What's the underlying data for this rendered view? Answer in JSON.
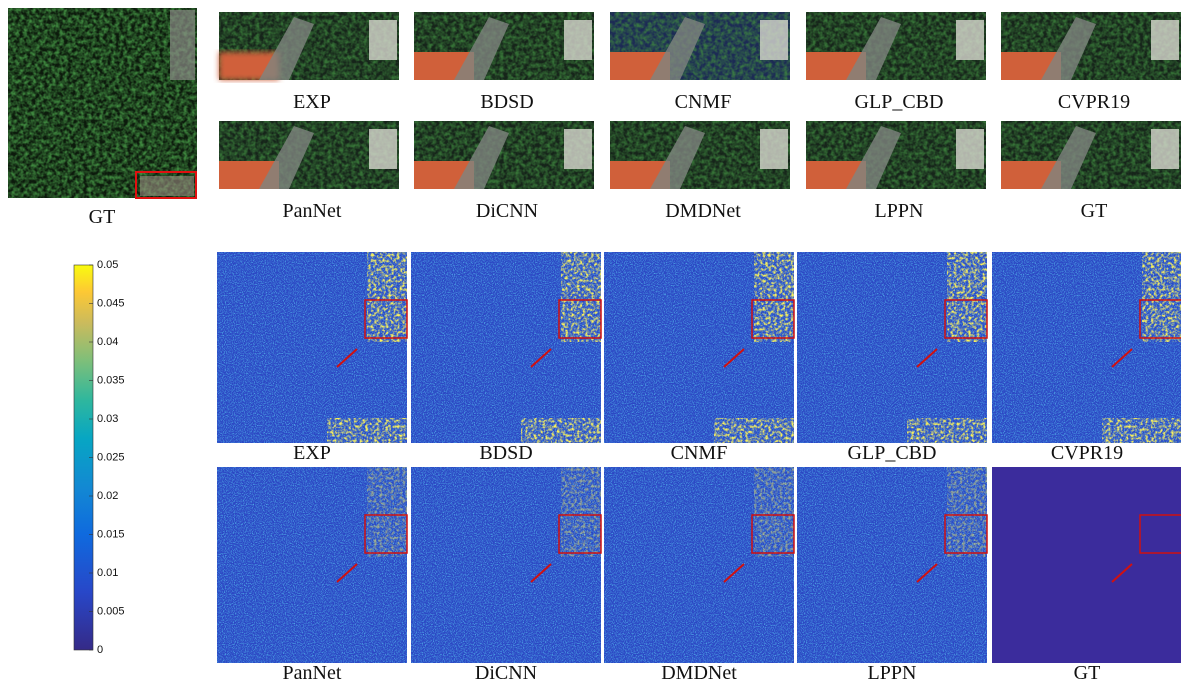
{
  "gt_image": {
    "label": "GT"
  },
  "crops": {
    "labels": [
      "EXP",
      "BDSD",
      "CNMF",
      "GLP_CBD",
      "CVPR19",
      "PanNet",
      "DiCNN",
      "DMDNet",
      "LPPN",
      "GT"
    ]
  },
  "error_maps": {
    "labels": [
      "EXP",
      "BDSD",
      "CNMF",
      "GLP_CBD",
      "CVPR19",
      "PanNet",
      "DiCNN",
      "DMDNet",
      "LPPN",
      "GT"
    ]
  },
  "colorbar": {
    "lim": [
      0,
      0.05
    ],
    "ticks": [
      0,
      0.005,
      0.01,
      0.015,
      0.02,
      0.025,
      0.03,
      0.035,
      0.04,
      0.045,
      0.05
    ]
  }
}
